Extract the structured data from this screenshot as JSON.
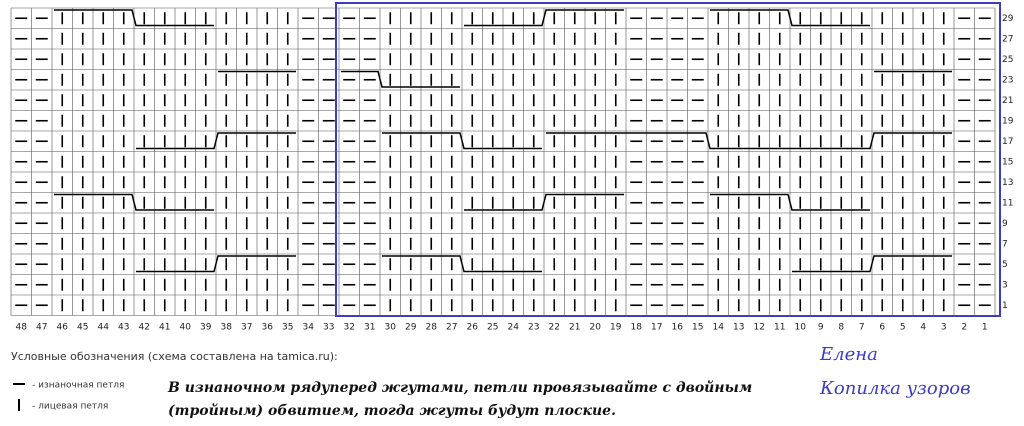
{
  "grid": {
    "columns": [
      48,
      47,
      46,
      45,
      44,
      43,
      42,
      41,
      40,
      39,
      38,
      37,
      36,
      35,
      34,
      33,
      32,
      31,
      30,
      29,
      28,
      27,
      26,
      25,
      24,
      23,
      22,
      21,
      20,
      19,
      18,
      17,
      16,
      15,
      14,
      13,
      12,
      11,
      10,
      9,
      8,
      7,
      6,
      5,
      4,
      3,
      2,
      1
    ],
    "rows": [
      29,
      27,
      25,
      23,
      21,
      19,
      17,
      15,
      13,
      11,
      9,
      7,
      5,
      3,
      1
    ]
  },
  "legend": {
    "title": "Условные обозначения (схема составлена на tamica.ru):",
    "items": [
      "- изнаночная петля",
      "- лицевая петля"
    ]
  },
  "note": [
    "В изнаночном рядуперед жгутами, петли провязывайте с двойным",
    "(тройным) обвитием, тогда жгуты будут плоские."
  ],
  "signature": [
    "Елена",
    "Копилка узоров"
  ]
}
